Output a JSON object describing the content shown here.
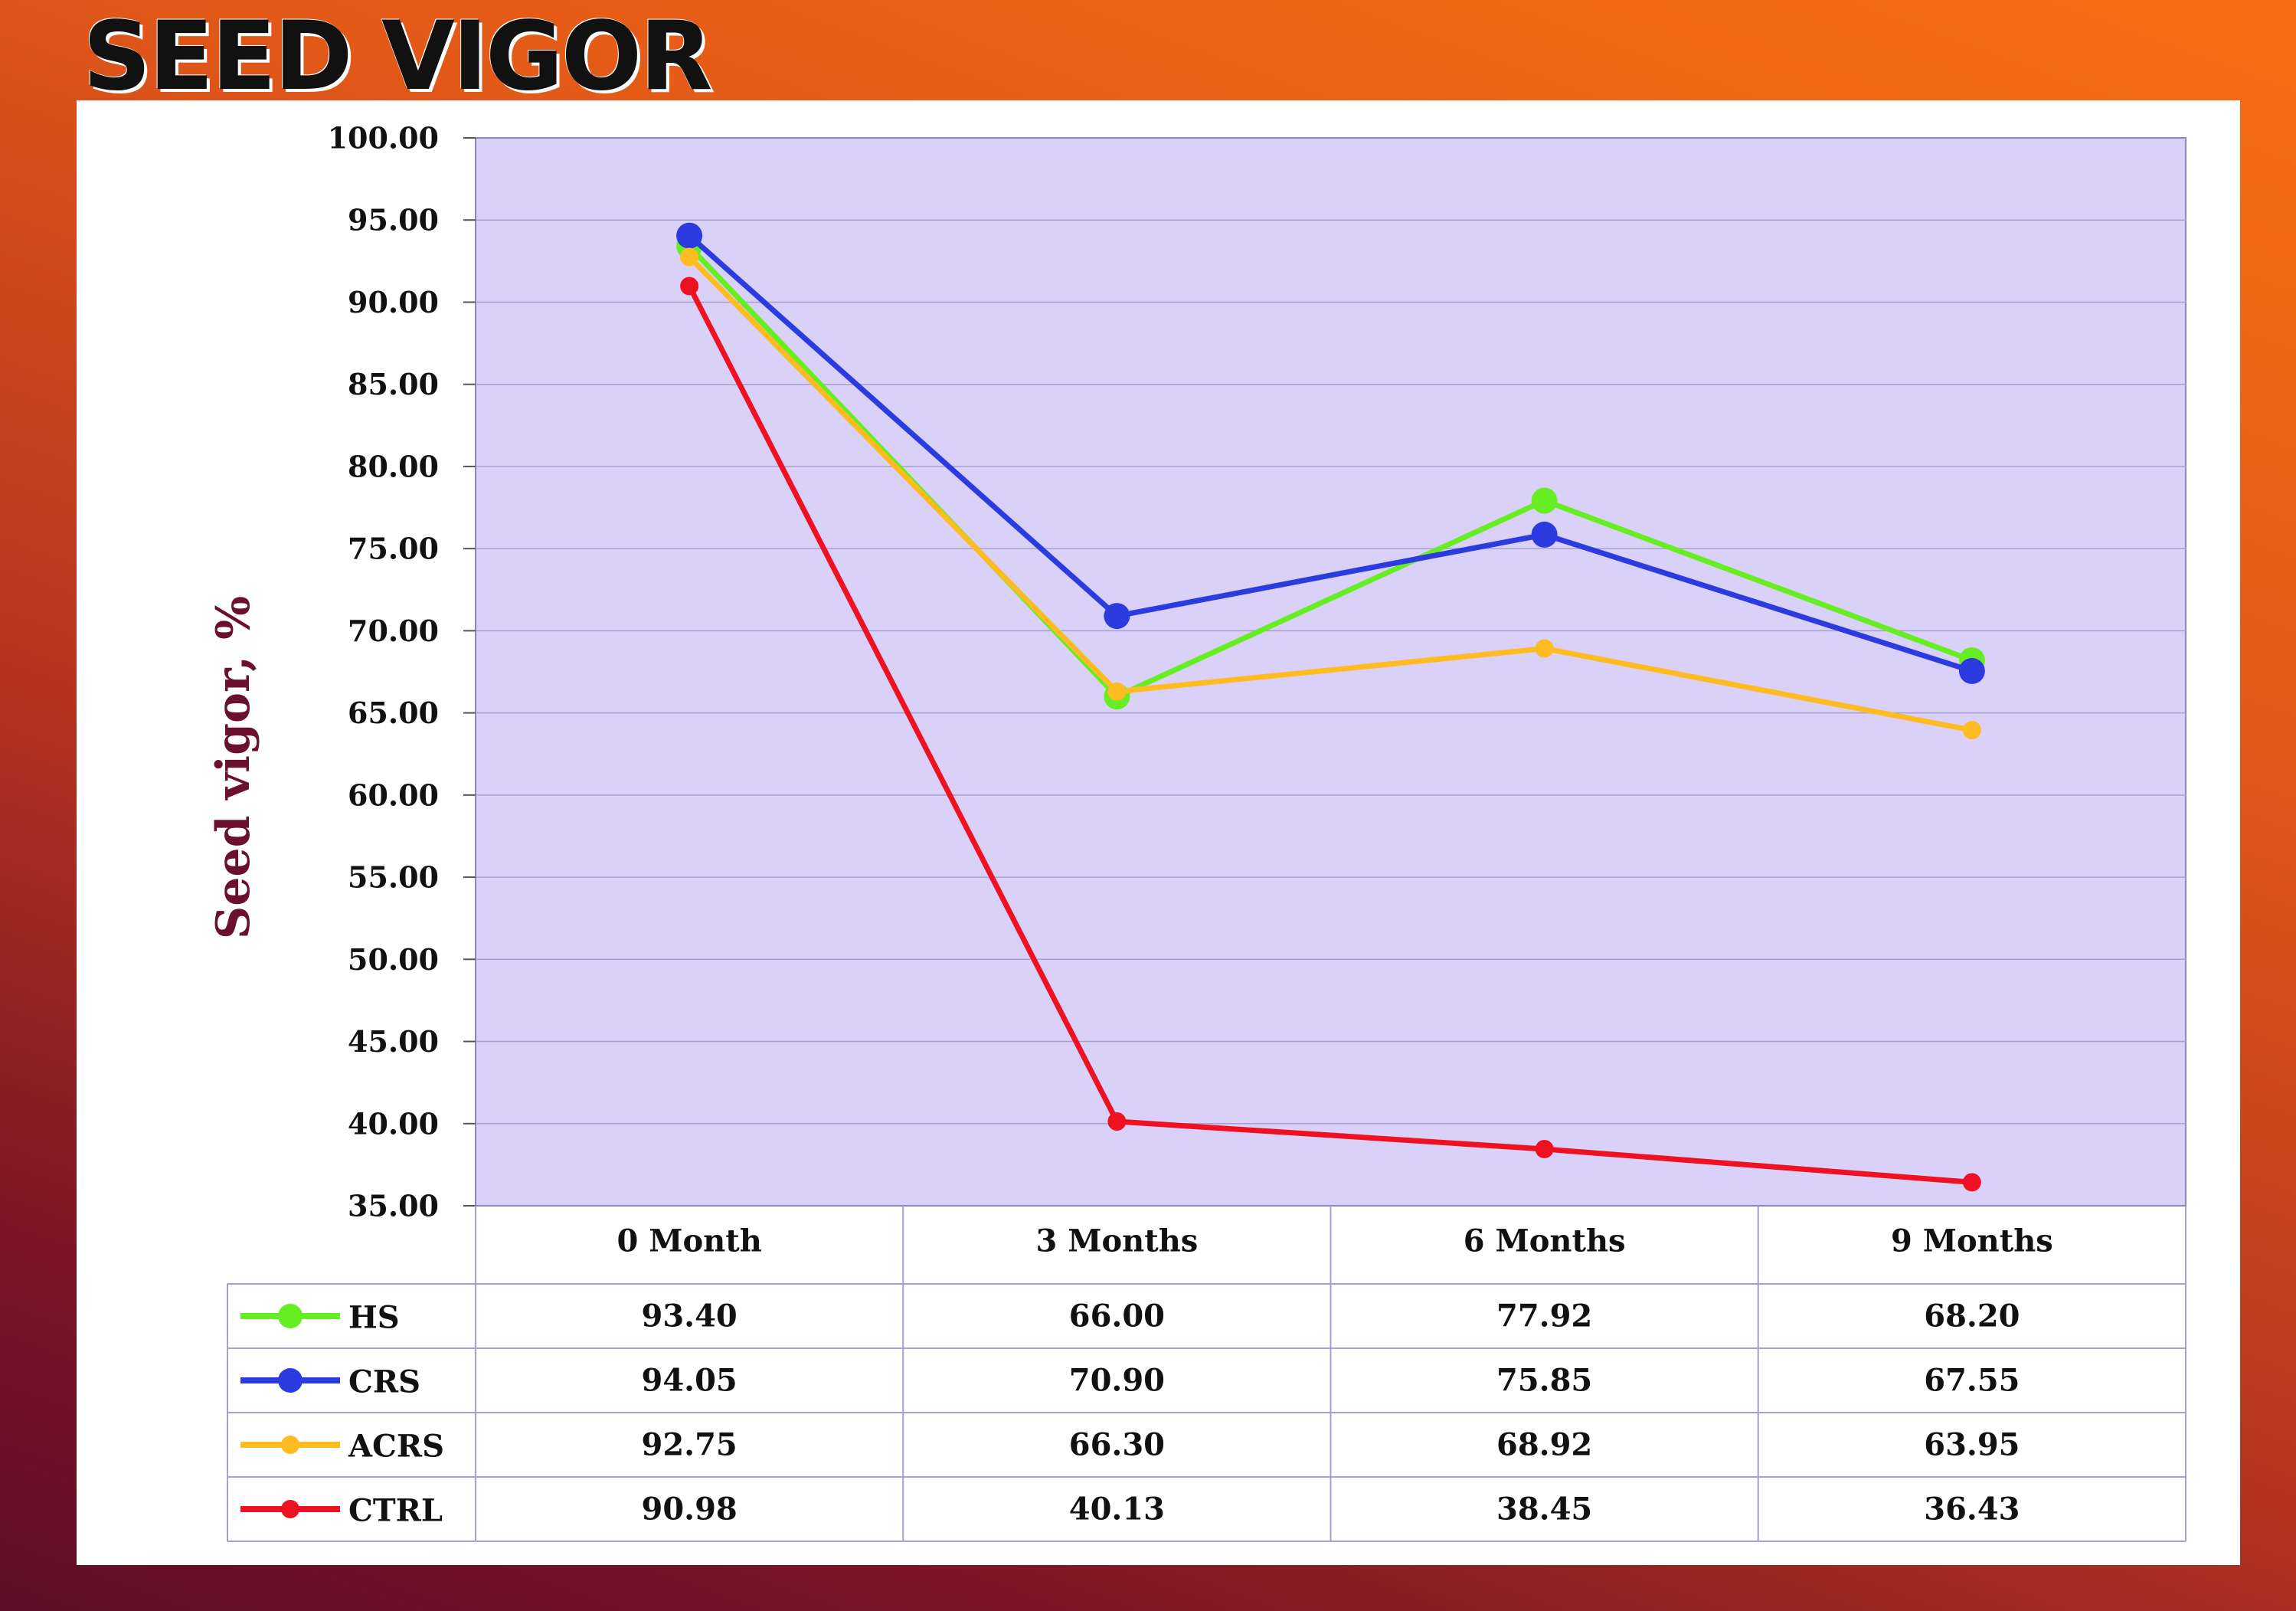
{
  "slide": {
    "title": "SEED VIGOR"
  },
  "chart_data": {
    "type": "line",
    "title": "",
    "ylabel": "Seed vigor, %",
    "xlabel": "",
    "categories": [
      "0 Month",
      "3 Months",
      "6 Months",
      "9 Months"
    ],
    "ylim": [
      35,
      100
    ],
    "yticks": [
      "35.00",
      "40.00",
      "45.00",
      "50.00",
      "55.00",
      "60.00",
      "65.00",
      "70.00",
      "75.00",
      "80.00",
      "85.00",
      "90.00",
      "95.00",
      "100.00"
    ],
    "grid": true,
    "data_table": true,
    "plot_background": "#d9d1f7",
    "series": [
      {
        "name": "HS",
        "color": "#66ee22",
        "values": [
          93.4,
          66.0,
          77.92,
          68.2
        ],
        "labels": [
          "93.40",
          "66.00",
          "77.92",
          "68.20"
        ]
      },
      {
        "name": "CRS",
        "color": "#2b3be0",
        "values": [
          94.05,
          70.9,
          75.85,
          67.55
        ],
        "labels": [
          "94.05",
          "70.90",
          "75.85",
          "67.55"
        ]
      },
      {
        "name": "ACRS",
        "color": "#ffbb22",
        "values": [
          92.75,
          66.3,
          68.92,
          63.95
        ],
        "labels": [
          "92.75",
          "66.30",
          "68.92",
          "63.95"
        ]
      },
      {
        "name": "CTRL",
        "color": "#ee1122",
        "values": [
          90.98,
          40.13,
          38.45,
          36.43
        ],
        "labels": [
          "90.98",
          "40.13",
          "38.45",
          "36.43"
        ]
      }
    ]
  }
}
